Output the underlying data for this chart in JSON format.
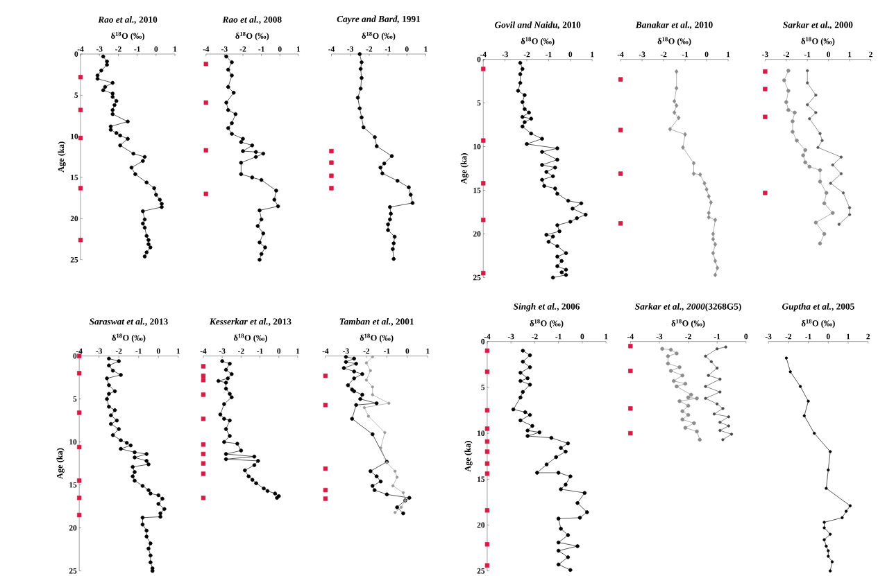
{
  "chart_data": [
    {
      "type": "line",
      "title": "*Rao et al.,* 2010",
      "xlabel": "δ$^{18}$O (‰)",
      "ylabel": "Age (ka)",
      "xlim": [
        -4,
        1
      ],
      "xticks": [
        -4,
        -3,
        -2,
        -1,
        0,
        1
      ],
      "ylim": [
        25,
        0
      ],
      "yticks": [
        0,
        5,
        10,
        15,
        20,
        25
      ],
      "marker": "circle",
      "series": [
        {
          "color": "#000000",
          "x": [
            -2.8,
            -2.6,
            -2.6,
            -2.9,
            -3.1,
            -3.1,
            -2.3,
            -2.7,
            -2.8,
            -2.3,
            -2.3,
            -2.1,
            -2.2,
            -2.3,
            -2.3,
            -1.5,
            -2.4,
            -2.4,
            -2.1,
            -1.9,
            -1.5,
            -1.9,
            -1.2,
            -0.6,
            -0.7,
            -1.3,
            -1.1,
            -0.5,
            -0.1,
            0.0,
            0.2,
            0.3,
            0.3,
            -0.7,
            -0.6,
            -0.7,
            -0.6,
            -0.5,
            -0.4,
            -0.4,
            -0.3,
            -0.5,
            -0.6
          ],
          "values": [
            0.3,
            0.9,
            1.3,
            2.0,
            2.6,
            3.0,
            3.5,
            4.0,
            4.4,
            4.8,
            5.2,
            5.7,
            6.2,
            6.8,
            7.3,
            8.2,
            8.8,
            9.2,
            9.6,
            9.9,
            10.3,
            11.1,
            12.1,
            12.5,
            13.0,
            13.8,
            14.6,
            15.6,
            16.3,
            17.1,
            17.7,
            18.2,
            18.6,
            19.1,
            20.1,
            20.6,
            21.1,
            22.1,
            22.6,
            23.1,
            23.5,
            24.1,
            24.6
          ]
        },
        {
          "type": "scatter",
          "marker": "square",
          "color": "#d81b45",
          "x": [
            -4,
            -4,
            -4,
            -4,
            -4
          ],
          "values": [
            2.8,
            6.8,
            10.2,
            16.3,
            22.6
          ]
        }
      ]
    },
    {
      "type": "line",
      "title": "*Rao et al.*, 2008",
      "xlabel": "δ$^{18}$O (‰)",
      "xlim": [
        -4,
        1
      ],
      "xticks": [
        -4,
        -3,
        -2,
        -1,
        0,
        1
      ],
      "ylim": [
        25,
        0
      ],
      "tick_labels": "x",
      "marker": "circle",
      "series": [
        {
          "color": "#000000",
          "x": [
            -2.9,
            -2.6,
            -2.8,
            -2.6,
            -2.8,
            -2.5,
            -2.9,
            -2.8,
            -2.4,
            -2.6,
            -2.8,
            -2.6,
            -2.0,
            -2.1,
            -1.5,
            -2.0,
            -1.3,
            -0.9,
            -1.3,
            -2.1,
            -2.1,
            -1.5,
            -1.0,
            -0.2,
            -0.3,
            -0.1,
            -1.1,
            -1.0,
            -1.2,
            -0.9,
            -1.1,
            -0.8,
            -1.0,
            -1.1
          ],
          "values": [
            0.3,
            1.0,
            1.9,
            2.6,
            4.0,
            4.7,
            5.9,
            6.8,
            7.3,
            8.4,
            9.0,
            9.7,
            10.3,
            10.7,
            11.1,
            11.8,
            11.9,
            12.1,
            12.5,
            13.2,
            14.6,
            15.0,
            15.3,
            16.6,
            17.7,
            18.5,
            19.0,
            20.1,
            20.9,
            21.8,
            22.9,
            23.5,
            24.3,
            25.0
          ]
        },
        {
          "type": "scatter",
          "marker": "square",
          "color": "#d81b45",
          "x": [
            -4,
            -4,
            -4,
            -4
          ],
          "values": [
            1.2,
            5.9,
            11.7,
            17.0
          ]
        }
      ]
    },
    {
      "type": "line",
      "title": "*Cayre and Bard,* 1991",
      "xlabel": "δ$^{18}$O (‰)",
      "xlim": [
        -4,
        1
      ],
      "xticks": [
        -4,
        -3,
        -2,
        -1,
        0,
        1
      ],
      "ylim": [
        25,
        0
      ],
      "tick_labels": "x",
      "marker": "circle",
      "series": [
        {
          "color": "#000000",
          "x": [
            -2.5,
            -2.4,
            -2.45,
            -2.4,
            -2.45,
            -2.6,
            -2.5,
            -2.4,
            -2.3,
            -1.7,
            -1.6,
            -0.8,
            -1.2,
            -1.4,
            -1.3,
            -0.5,
            0.1,
            0.2,
            0.3,
            -0.9,
            -0.85,
            -0.9,
            -1.0,
            -1.0,
            -0.65,
            -0.7,
            -0.75,
            -0.7
          ],
          "values": [
            0,
            1.0,
            1.8,
            2.9,
            4.2,
            5.3,
            6.6,
            7.7,
            8.9,
            10.1,
            11.2,
            12.4,
            13.3,
            13.8,
            14.5,
            15.4,
            16.2,
            17.1,
            18.1,
            18.6,
            19.4,
            20.1,
            20.7,
            21.4,
            22.2,
            23.0,
            23.7,
            24.9
          ]
        },
        {
          "type": "scatter",
          "marker": "square",
          "color": "#d81b45",
          "x": [
            -4,
            -4,
            -4,
            -4
          ],
          "values": [
            11.8,
            13.2,
            14.8,
            16.3
          ]
        }
      ]
    },
    {
      "type": "line",
      "title": "*Govil and Naidu,* 2010",
      "xlabel": "δ$^{18}$O (‰)",
      "ylabel": "Age (ka)",
      "xlim": [
        -4,
        1
      ],
      "xticks": [
        -4,
        -3,
        -2,
        -1,
        0,
        1
      ],
      "ylim": [
        25,
        0
      ],
      "yticks": [
        0,
        5,
        10,
        15,
        20,
        25
      ],
      "marker": "circle",
      "series": [
        {
          "color": "#000000",
          "x": [
            -2.3,
            -2.2,
            -2.3,
            -2.3,
            -2.4,
            -2.1,
            -2.2,
            -2.1,
            -1.9,
            -2.2,
            -1.8,
            -2.1,
            -2.2,
            -1.8,
            -1.3,
            -2.0,
            -0.6,
            -1.3,
            -0.6,
            -1.3,
            -0.7,
            -1.1,
            -0.8,
            -1.3,
            -1.2,
            -0.7,
            -0.6,
            -0.1,
            0.5,
            0.1,
            0.7,
            0.3,
            0.0,
            -0.6,
            -0.5,
            -1.1,
            -0.8,
            -1.0,
            -0.6,
            -0.2,
            -0.6,
            -0.4,
            -0.6,
            -0.2,
            -0.4,
            -0.2,
            -0.8
          ],
          "values": [
            0.4,
            1.1,
            1.7,
            2.7,
            3.6,
            4.1,
            4.9,
            5.7,
            6.1,
            6.6,
            6.8,
            7.2,
            7.7,
            8.5,
            9.1,
            9.7,
            10.2,
            10.6,
            11.5,
            12.1,
            12.4,
            12.9,
            13.4,
            13.8,
            14.5,
            14.8,
            15.4,
            16.2,
            16.5,
            17.1,
            17.8,
            18.2,
            18.6,
            19.0,
            19.7,
            20.1,
            20.3,
            20.9,
            21.4,
            22.2,
            22.6,
            23.1,
            23.7,
            24.1,
            24.4,
            24.7,
            25.0
          ]
        },
        {
          "type": "scatter",
          "marker": "square",
          "color": "#d81b45",
          "x": [
            -4,
            -4,
            -4,
            -4,
            -4
          ],
          "values": [
            1.1,
            9.3,
            14.2,
            18.4,
            24.5
          ]
        }
      ]
    },
    {
      "type": "line",
      "title": "*Banakar et al.,* 2010",
      "xlabel": "δ$^{18}$O (‰)",
      "xlim": [
        -4,
        1
      ],
      "xticks": [
        -4,
        -3,
        -2,
        -1,
        0,
        1
      ],
      "ylim": [
        25,
        0
      ],
      "tick_labels": "x",
      "marker": "diamond",
      "series": [
        {
          "color": "#8c8c8c",
          "x": [
            -1.4,
            -1.4,
            -1.5,
            -1.4,
            -1.5,
            -1.3,
            -1.7,
            -1.0,
            -1.1,
            -0.6,
            -0.6,
            -0.3,
            -0.1,
            0.0,
            0.1,
            0.2,
            0.1,
            0.1,
            0.4,
            0.3,
            0.3,
            0.4,
            0.3,
            0.4,
            0.5,
            0.4
          ],
          "values": [
            1.4,
            3.3,
            4.8,
            5.3,
            6.1,
            6.7,
            8.0,
            8.6,
            10.1,
            11.9,
            13.1,
            13.2,
            14.2,
            14.9,
            15.7,
            16.4,
            17.6,
            18.1,
            18.4,
            20.0,
            20.6,
            21.2,
            22.2,
            23.1,
            23.9,
            24.7
          ]
        },
        {
          "type": "scatter",
          "marker": "square",
          "color": "#d81b45",
          "x": [
            -4,
            -4,
            -4,
            -4
          ],
          "values": [
            2.3,
            8.1,
            13.1,
            18.8
          ]
        }
      ]
    },
    {
      "type": "line",
      "title": "*Sarkar et al.,* 2000",
      "xlabel": "δ$^{18}$O (‰)",
      "xlim": [
        -3,
        2
      ],
      "xticks": [
        -3,
        -2,
        -1,
        0,
        1,
        2
      ],
      "ylim": [
        25,
        0
      ],
      "tick_labels": "x",
      "marker": "circle",
      "series": [
        {
          "color": "#8c8c8c",
          "x": [
            -1.9,
            -2.1,
            -1.9,
            -2.0,
            -1.9,
            -1.6,
            -1.7,
            -1.7,
            -1.5,
            -1.1,
            -1.2,
            -1.1,
            -0.9,
            -0.4,
            -0.4,
            -0.1,
            -0.2,
            0.2,
            -0.6,
            -0.2,
            -0.4
          ],
          "values": [
            1.3,
            2.4,
            3.6,
            4.9,
            5.8,
            6.1,
            7.1,
            8.3,
            9.3,
            10.4,
            11.0,
            11.8,
            12.3,
            12.7,
            14.0,
            15.3,
            16.5,
            17.6,
            18.7,
            20.0,
            21.1
          ]
        },
        {
          "color": "#5a5a5a",
          "x": [
            -1.0,
            -1.0,
            -0.6,
            -1.0,
            -0.6,
            -0.9,
            -0.4,
            -0.3,
            -0.5,
            0.6,
            0.2,
            0.6,
            0.1,
            0.7,
            1.0,
            1.0,
            0.5
          ],
          "values": [
            1.3,
            2.7,
            4.1,
            5.2,
            6.1,
            6.8,
            8.5,
            9.3,
            10.1,
            11.2,
            12.1,
            13.1,
            14.2,
            15.3,
            17.0,
            17.8,
            18.9
          ]
        },
        {
          "type": "scatter",
          "marker": "square",
          "color": "#d81b45",
          "x": [
            -3,
            -3,
            -3,
            -3
          ],
          "values": [
            1.4,
            3.4,
            6.6,
            15.3
          ]
        }
      ]
    },
    {
      "type": "line",
      "title": "*Saraswat et al.*, 2013",
      "xlabel": "δ$^{18}$O (‰)",
      "ylabel": "Age (ka)",
      "xlim": [
        -4,
        1
      ],
      "xticks": [
        -4,
        -3,
        -2,
        -1,
        0,
        1
      ],
      "ylim": [
        25,
        0
      ],
      "yticks": [
        0,
        5,
        10,
        15,
        20,
        25
      ],
      "marker": "circle",
      "series": [
        {
          "color": "#000000",
          "x": [
            -2.5,
            -2.0,
            -2.5,
            -2.3,
            -1.9,
            -2.6,
            -2.5,
            -2.2,
            -2.5,
            -2.6,
            -2.5,
            -2.2,
            -2.4,
            -2.1,
            -2.4,
            -2.0,
            -2.3,
            -1.9,
            -1.6,
            -1.4,
            -1.9,
            -1.2,
            -0.6,
            -1.2,
            -0.6,
            -0.5,
            -1.3,
            -1.2,
            -1.3,
            -1.2,
            -0.8,
            -0.5,
            -0.4,
            0.0,
            0.2,
            0.0,
            0.3,
            0.1,
            0.1,
            -0.8,
            -0.8,
            -0.6,
            -0.6,
            -0.4,
            -0.5,
            -0.4,
            -0.4,
            -0.3,
            -0.3
          ],
          "values": [
            0.3,
            0.6,
            1.1,
            1.7,
            2.2,
            2.6,
            3.4,
            4.1,
            4.4,
            5.0,
            5.9,
            6.3,
            6.9,
            7.5,
            7.9,
            8.5,
            9.2,
            9.8,
            10.1,
            10.4,
            10.8,
            11.2,
            11.4,
            11.8,
            12.2,
            12.6,
            12.9,
            13.5,
            14.0,
            14.5,
            15.1,
            15.6,
            16.0,
            16.2,
            16.6,
            17.2,
            17.8,
            18.3,
            18.7,
            18.8,
            19.6,
            20.3,
            21.0,
            21.8,
            22.4,
            23.2,
            24.0,
            24.7,
            25.0
          ]
        },
        {
          "type": "scatter",
          "marker": "square",
          "color": "#d81b45",
          "x": [
            -4,
            -4,
            -4,
            -4,
            -4,
            -4,
            -4
          ],
          "values": [
            0,
            2.0,
            6.6,
            10.6,
            14.5,
            16.5,
            18.5
          ]
        }
      ]
    },
    {
      "type": "line",
      "title": "*Kesserkar et al.*, 2013",
      "xlabel": "δ$^{18}$O (‰)",
      "xlim": [
        -4,
        1
      ],
      "xticks": [
        -4,
        -3,
        -2,
        -1,
        0,
        1
      ],
      "ylim": [
        25,
        0
      ],
      "tick_labels": "x",
      "marker": "circle",
      "series": [
        {
          "color": "#000000",
          "x": [
            -3.0,
            -2.6,
            -2.8,
            -2.5,
            -2.7,
            -3.2,
            -2.8,
            -2.8,
            -2.6,
            -2.5,
            -2.9,
            -3.1,
            -2.9,
            -2.6,
            -2.8,
            -2.6,
            -2.9,
            -2.2,
            -2.0,
            -2.8,
            -1.3,
            -2.8,
            -1.1,
            -1.3,
            -1.8,
            -1.6,
            -1.4,
            -1.2,
            -0.8,
            -0.6,
            -0.2,
            0.0,
            -0.1
          ],
          "values": [
            0.6,
            0.9,
            1.6,
            2.1,
            2.6,
            2.9,
            3.1,
            3.8,
            4.4,
            4.8,
            5.6,
            6.8,
            7.3,
            7.5,
            8.5,
            9.3,
            10.0,
            10.2,
            11.0,
            11.4,
            11.7,
            12.0,
            12.2,
            12.7,
            13.3,
            14.0,
            14.4,
            14.8,
            15.4,
            15.7,
            16.0,
            16.3,
            16.5
          ]
        },
        {
          "type": "scatter",
          "marker": "square",
          "color": "#d81b45",
          "x": [
            -4,
            -4,
            -4,
            -4,
            -4,
            -4,
            -4,
            -4,
            -4,
            -4
          ],
          "values": [
            1.2,
            2.3,
            2.8,
            4.5,
            7.3,
            10.3,
            11.4,
            12.5,
            13.7,
            16.5
          ]
        }
      ]
    },
    {
      "type": "line",
      "title": "*Tamban et al.*, 2001",
      "xlabel": "δ$^{18}$O (‰)",
      "xlim": [
        -4,
        1
      ],
      "xticks": [
        -4,
        -3,
        -2,
        -1,
        0,
        1
      ],
      "ylim": [
        25,
        0
      ],
      "tick_labels": "x",
      "marker": "circle",
      "series": [
        {
          "color": "#000000",
          "x": [
            -3.0,
            -2.6,
            -3.0,
            -2.5,
            -3.1,
            -2.6,
            -2.2,
            -2.6,
            -2.9,
            -2.7,
            -2.6,
            -2.2,
            -2.3,
            -1.5,
            -2.5,
            -2.7,
            -1.7,
            -1.0,
            -1.8,
            -1.5,
            -1.3,
            -1.7,
            -1.6,
            -1.0,
            0.1,
            -0.1,
            -0.5,
            -0.2
          ],
          "values": [
            0.1,
            0.3,
            0.7,
            0.9,
            1.4,
            1.8,
            2.1,
            2.6,
            3.4,
            3.9,
            4.1,
            4.5,
            5.0,
            5.5,
            5.7,
            7.3,
            9.1,
            12.3,
            13.4,
            14.0,
            14.6,
            15.1,
            15.6,
            16.1,
            16.5,
            16.8,
            17.6,
            18.3
          ]
        },
        {
          "color": "#9a9a9a",
          "x": [
            -1.7,
            -2.0,
            -1.8,
            -2.0,
            -1.7,
            -1.7,
            -0.9,
            -2.1,
            -1.9,
            -1.1,
            -1.3,
            -1.0,
            -0.6,
            -0.5,
            -0.7,
            -0.2,
            -0.1,
            -0.3,
            -0.6
          ],
          "values": [
            0.1,
            0.8,
            1.7,
            2.8,
            3.6,
            4.5,
            5.5,
            6.0,
            7.0,
            8.9,
            10.7,
            12.4,
            13.4,
            14.1,
            15.1,
            15.9,
            16.8,
            17.6,
            18.2
          ]
        },
        {
          "type": "scatter",
          "marker": "square",
          "color": "#d81b45",
          "x": [
            -4,
            -4,
            -4,
            -4,
            -4
          ],
          "values": [
            2.3,
            5.7,
            13.1,
            15.6,
            16.6
          ]
        }
      ]
    },
    {
      "type": "line",
      "title": "*Singh et al.*, 2006",
      "xlabel": "δ$^{18}$O (‰)",
      "ylabel": "Age (ka)",
      "xlim": [
        -4,
        1
      ],
      "xticks": [
        -4,
        -3,
        -2,
        -1,
        0,
        1
      ],
      "ylim": [
        25,
        0
      ],
      "yticks": [
        0,
        5,
        10,
        15,
        20,
        25
      ],
      "marker": "circle",
      "series": [
        {
          "color": "#000000",
          "x": [
            -2.5,
            -2.2,
            -2.5,
            -2.2,
            -2.6,
            -2.3,
            -2.6,
            -2.2,
            -2.5,
            -2.6,
            -2.9,
            -2.4,
            -2.2,
            -2.6,
            -2.1,
            -2.3,
            -1.8,
            -2.3,
            -1.3,
            -0.6,
            -0.9,
            -0.7,
            -1.1,
            -1.5,
            -1.9,
            -1.0,
            -0.5,
            -0.7,
            -0.9,
            0.1,
            -0.2,
            0.2,
            -0.1,
            -1.0,
            -0.9,
            -0.6,
            -1.0,
            -0.2,
            -1.0,
            -0.6,
            -1.0,
            -0.5
          ],
          "values": [
            1.0,
            1.5,
            2.2,
            2.8,
            3.4,
            4.0,
            4.3,
            4.7,
            5.5,
            6.1,
            7.4,
            7.7,
            8.0,
            8.6,
            9.2,
            9.7,
            9.9,
            10.3,
            10.5,
            11.1,
            11.6,
            12.0,
            12.6,
            13.4,
            14.3,
            14.3,
            14.7,
            15.6,
            16.1,
            16.5,
            17.6,
            18.6,
            19.2,
            19.3,
            20.4,
            21.1,
            21.9,
            22.3,
            22.8,
            23.5,
            24.3,
            24.9
          ]
        },
        {
          "type": "scatter",
          "marker": "square",
          "color": "#d81b45",
          "x": [
            -4,
            -4,
            -4,
            -4,
            -4,
            -4,
            -4,
            -4,
            -4,
            -4,
            -4
          ],
          "values": [
            1.0,
            3.3,
            7.5,
            9.5,
            10.9,
            12.0,
            13.3,
            14.4,
            18.4,
            22.1,
            24.4
          ]
        }
      ]
    },
    {
      "type": "line",
      "title": "*Sarkar et al., 2000*(3268G5)",
      "xlabel": "δ$^{18}$O (‰)",
      "xlim": [
        -4,
        0
      ],
      "xticks": [
        -4,
        -3,
        -2,
        -1,
        0
      ],
      "ylim": [
        25,
        0
      ],
      "tick_labels": "x",
      "marker": "circle",
      "series": [
        {
          "color": "#8c8c8c",
          "x": [
            -2.9,
            -2.6,
            -2.4,
            -2.7,
            -2.7,
            -2.3,
            -2.6,
            -2.2,
            -2.5,
            -2.1,
            -2.4,
            -1.9,
            -2.0,
            -1.7,
            -2.3,
            -2.0,
            -2.2,
            -2.0,
            -2.2,
            -1.8,
            -2.1,
            -1.7,
            -1.6
          ],
          "values": [
            0.8,
            0.9,
            1.3,
            1.6,
            2.4,
            2.8,
            3.2,
            3.7,
            4.3,
            4.6,
            4.9,
            5.8,
            6.1,
            6.2,
            6.5,
            7.0,
            7.6,
            8.0,
            8.5,
            8.9,
            9.4,
            9.8,
            10.7
          ]
        },
        {
          "color": "#4a4a4a",
          "x": [
            -0.7,
            -1.0,
            -1.4,
            -1.2,
            -1.0,
            -1.3,
            -0.9,
            -1.4,
            -0.9,
            -1.4,
            -1.0,
            -0.8,
            -1.1,
            -0.6,
            -0.9,
            -0.6,
            -0.9,
            -0.5,
            -0.8
          ],
          "values": [
            0.6,
            0.8,
            1.6,
            2.2,
            2.9,
            3.7,
            4.1,
            4.9,
            5.5,
            6.2,
            6.8,
            7.3,
            7.9,
            8.2,
            8.8,
            9.2,
            9.7,
            10.1,
            10.7
          ]
        },
        {
          "type": "scatter",
          "marker": "square",
          "color": "#d81b45",
          "x": [
            -4,
            -4,
            -4,
            -4
          ],
          "values": [
            0.5,
            3.2,
            7.3,
            10.0
          ]
        }
      ]
    },
    {
      "type": "line",
      "title": "*Guptha et al.*, 2005",
      "xlabel": "δ$^{18}$O (‰)",
      "xlim": [
        -3,
        2
      ],
      "xticks": [
        -3,
        -2,
        -1,
        0,
        1,
        2
      ],
      "ylim": [
        25,
        0
      ],
      "tick_labels": "x",
      "marker": "circle",
      "series": [
        {
          "color": "#000000",
          "x": [
            -2.1,
            -1.9,
            -1.4,
            -1.0,
            -1.2,
            -0.7,
            0.1,
            0.0,
            -0.1,
            1.1,
            0.9,
            0.7,
            -0.2,
            -0.2,
            0.1,
            -0.2,
            -0.1,
            0.0,
            0.0,
            0.2,
            0.1
          ],
          "values": [
            1.8,
            3.3,
            4.9,
            6.5,
            8.1,
            10.0,
            12.0,
            14.0,
            16.0,
            17.9,
            18.5,
            19.2,
            19.7,
            20.3,
            21.0,
            21.6,
            22.3,
            22.8,
            23.4,
            24.0,
            25.0
          ]
        }
      ]
    }
  ]
}
